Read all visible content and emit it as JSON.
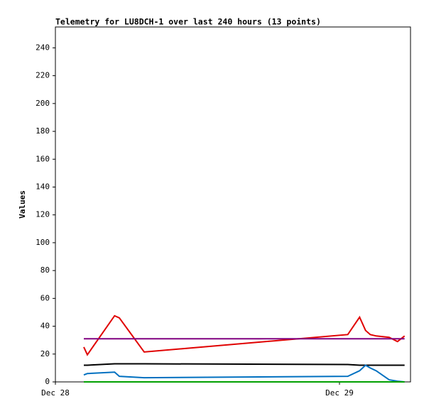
{
  "chart_data": {
    "type": "line",
    "title": "Telemetry for LU8DCH-1 over last 240 hours (13 points)",
    "y_label": "Values",
    "x": [
      2.4,
      2.7,
      5.0,
      5.4,
      7.5,
      24.7,
      25.7,
      26.2,
      26.6,
      27.1,
      28.2,
      28.9,
      29.5
    ],
    "xlim": [
      0,
      30
    ],
    "xticks": [
      {
        "value": 0,
        "label": "Dec 28"
      },
      {
        "value": 24,
        "label": "Dec 29"
      }
    ],
    "ylim": [
      0,
      255
    ],
    "yticks": [
      0,
      20,
      40,
      60,
      80,
      100,
      120,
      140,
      160,
      180,
      200,
      220,
      240
    ],
    "series": [
      {
        "color": "#e00000",
        "values": [
          25,
          19.5,
          47.5,
          46,
          21.5,
          34,
          46.5,
          37,
          34,
          33,
          32,
          29,
          33
        ]
      },
      {
        "color": "#800080",
        "values": [
          31,
          31,
          31,
          31,
          31,
          31,
          31,
          31,
          31,
          31,
          31,
          31,
          31
        ]
      },
      {
        "color": "#000000",
        "values": [
          12,
          12,
          13,
          13,
          13,
          12.5,
          12,
          12,
          12,
          12,
          12,
          12,
          12
        ]
      },
      {
        "color": "#0070c0",
        "values": [
          5,
          6,
          7,
          4,
          3,
          4,
          8,
          12,
          10,
          8,
          1.5,
          0.5,
          0
        ]
      },
      {
        "color": "#00a000",
        "values": [
          0,
          0,
          0,
          0,
          0,
          0,
          0,
          0,
          0,
          0,
          0,
          0,
          0
        ]
      }
    ]
  }
}
